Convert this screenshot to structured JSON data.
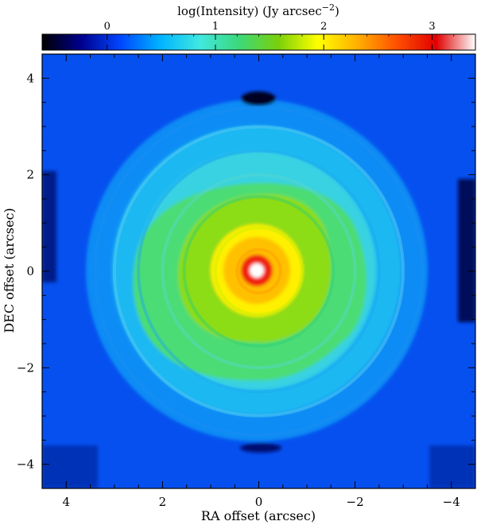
{
  "chart_data": {
    "type": "heatmap",
    "title": "",
    "colorbar": {
      "label_main": "log(Intensity) (Jy arcsec",
      "label_exp": "−2",
      "label_close": ")",
      "range": [
        -0.6,
        3.4
      ],
      "ticks": [
        0,
        1,
        2,
        3
      ],
      "tick_labels": [
        "0",
        "1",
        "2",
        "3"
      ],
      "colormap": [
        "#000000",
        "#00008f",
        "#0047ff",
        "#00b4ff",
        "#40e8e0",
        "#3cd87a",
        "#7ad00a",
        "#ffff00",
        "#ffb000",
        "#ff5000",
        "#e00000",
        "#ffffff"
      ]
    },
    "xlabel": "RA offset (arcsec)",
    "ylabel": "DEC offset (arcsec)",
    "xlim": [
      4.5,
      -4.5
    ],
    "ylim": [
      -4.5,
      4.5
    ],
    "x_ticks": [
      4,
      2,
      0,
      -2,
      -4
    ],
    "x_tick_labels": [
      "4",
      "2",
      "0",
      "−2",
      "−4"
    ],
    "y_ticks": [
      -4,
      -2,
      0,
      2,
      4
    ],
    "y_tick_labels": [
      "−4",
      "−2",
      "0",
      "2",
      "4"
    ],
    "grid": false,
    "center_peak_log_intensity": 3.4,
    "rings_radius_arcsec": [
      0.45,
      0.9,
      1.55,
      2.0,
      2.5,
      3.0,
      3.4
    ]
  }
}
